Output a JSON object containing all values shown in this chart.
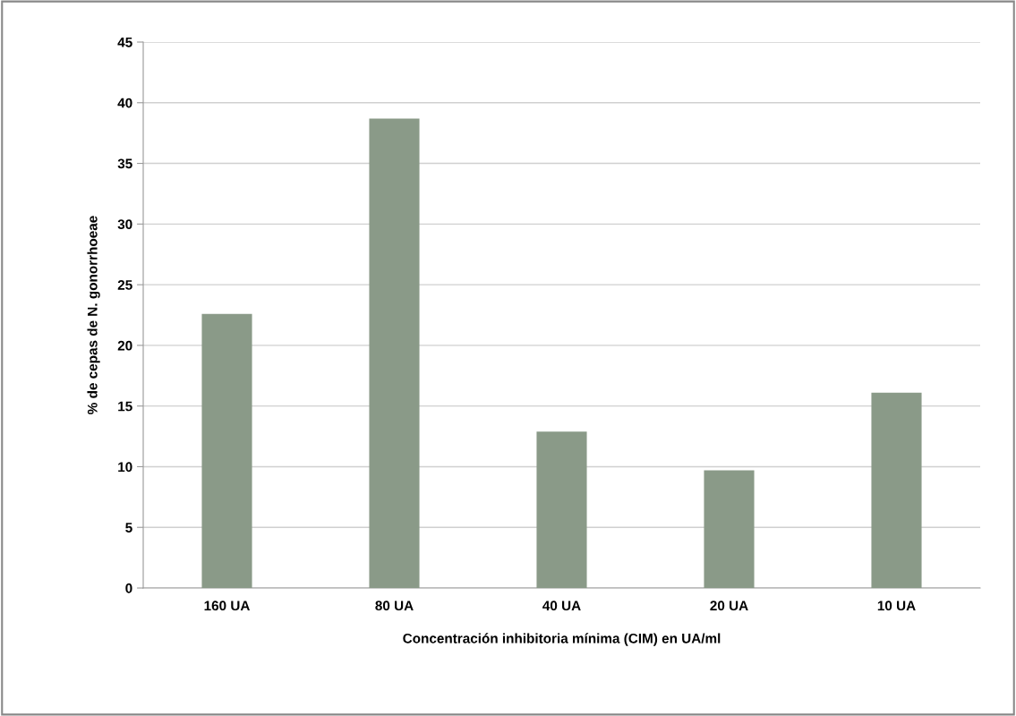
{
  "chart_data": {
    "type": "bar",
    "xlabel": "Concentración inhibitoria mínima (CIM) en UA/ml",
    "ylabel": "% de cepas de N. gonorrhoeae",
    "categories": [
      "160 UA",
      "80 UA",
      "40 UA",
      "20 UA",
      "10 UA"
    ],
    "values": [
      22.6,
      38.7,
      12.9,
      9.7,
      16.1
    ],
    "color": "#8a9a88",
    "ylim": [
      0,
      45
    ],
    "yticks": [
      0,
      5,
      10,
      15,
      20,
      25,
      30,
      35,
      40,
      45
    ],
    "grid": "y",
    "legend": false
  }
}
